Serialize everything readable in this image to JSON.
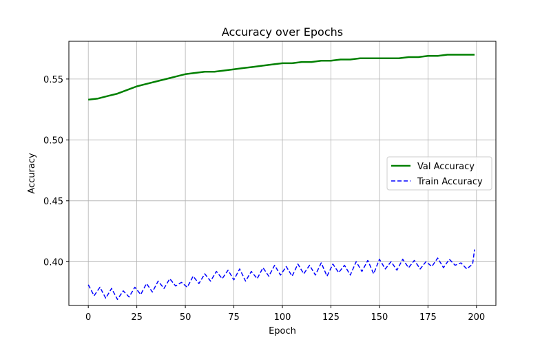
{
  "chart_data": {
    "type": "line",
    "title": "Accuracy over Epochs",
    "xlabel": "Epoch",
    "ylabel": "Accuracy",
    "xlim": [
      -10,
      210
    ],
    "ylim": [
      0.364,
      0.581
    ],
    "xticks": [
      0,
      25,
      50,
      75,
      100,
      125,
      150,
      175,
      200
    ],
    "yticks": [
      0.4,
      0.45,
      0.5,
      0.55
    ],
    "ytick_labels": [
      "0.40",
      "0.45",
      "0.50",
      "0.55"
    ],
    "grid": true,
    "legend_position": "center-right",
    "series": [
      {
        "name": "Val Accuracy",
        "color": "#008000",
        "style": "solid",
        "x": [
          0,
          5,
          10,
          15,
          20,
          25,
          30,
          35,
          40,
          45,
          50,
          55,
          60,
          65,
          70,
          75,
          80,
          85,
          90,
          95,
          100,
          105,
          110,
          115,
          120,
          125,
          130,
          135,
          140,
          145,
          150,
          155,
          160,
          165,
          170,
          175,
          180,
          185,
          190,
          195,
          199
        ],
        "values": [
          0.533,
          0.534,
          0.536,
          0.538,
          0.541,
          0.544,
          0.546,
          0.548,
          0.55,
          0.552,
          0.554,
          0.555,
          0.556,
          0.556,
          0.557,
          0.558,
          0.559,
          0.56,
          0.561,
          0.562,
          0.563,
          0.563,
          0.564,
          0.564,
          0.565,
          0.565,
          0.566,
          0.566,
          0.567,
          0.567,
          0.567,
          0.567,
          0.567,
          0.568,
          0.568,
          0.569,
          0.569,
          0.57,
          0.57,
          0.57,
          0.57
        ]
      },
      {
        "name": "Train Accuracy",
        "color": "#0000ff",
        "style": "dashed",
        "x": [
          0,
          3,
          6,
          9,
          12,
          15,
          18,
          21,
          24,
          27,
          30,
          33,
          36,
          39,
          42,
          45,
          48,
          51,
          54,
          57,
          60,
          63,
          66,
          69,
          72,
          75,
          78,
          81,
          84,
          87,
          90,
          93,
          96,
          99,
          102,
          105,
          108,
          111,
          114,
          117,
          120,
          123,
          126,
          129,
          132,
          135,
          138,
          141,
          144,
          147,
          150,
          153,
          156,
          159,
          162,
          165,
          168,
          171,
          174,
          177,
          180,
          183,
          186,
          189,
          192,
          195,
          198,
          199
        ],
        "values": [
          0.381,
          0.372,
          0.379,
          0.37,
          0.378,
          0.369,
          0.376,
          0.371,
          0.379,
          0.373,
          0.382,
          0.375,
          0.384,
          0.378,
          0.386,
          0.38,
          0.383,
          0.379,
          0.388,
          0.382,
          0.39,
          0.384,
          0.392,
          0.386,
          0.393,
          0.385,
          0.394,
          0.384,
          0.392,
          0.386,
          0.395,
          0.388,
          0.397,
          0.389,
          0.396,
          0.388,
          0.398,
          0.39,
          0.397,
          0.389,
          0.399,
          0.388,
          0.398,
          0.391,
          0.397,
          0.389,
          0.4,
          0.392,
          0.401,
          0.39,
          0.402,
          0.394,
          0.4,
          0.393,
          0.402,
          0.395,
          0.401,
          0.394,
          0.4,
          0.396,
          0.403,
          0.395,
          0.402,
          0.397,
          0.399,
          0.394,
          0.398,
          0.41
        ]
      }
    ]
  }
}
